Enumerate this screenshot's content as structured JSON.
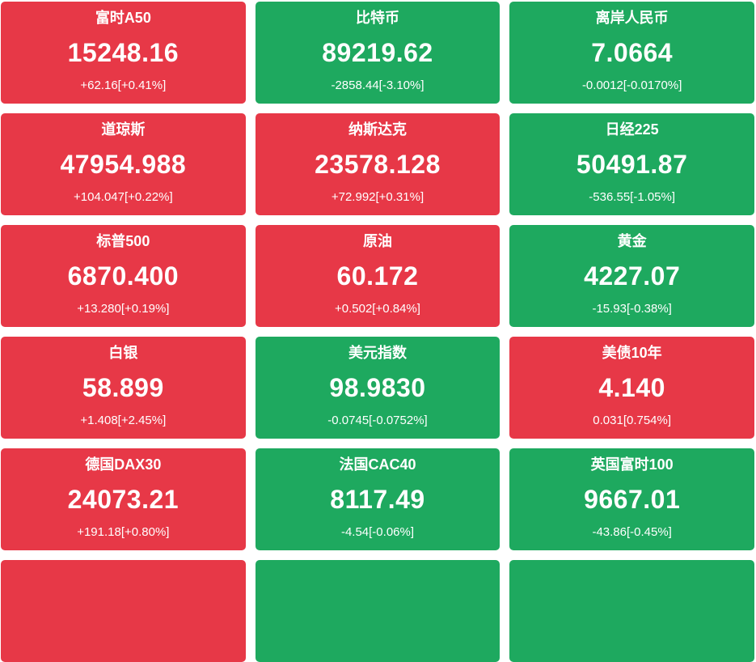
{
  "grid": {
    "colors": {
      "up": "#e73847",
      "down": "#1ea95f"
    },
    "tiles": [
      {
        "name": "富时A50",
        "price": "15248.16",
        "change": "+62.16[+0.41%]",
        "direction": "up"
      },
      {
        "name": "比特币",
        "price": "89219.62",
        "change": "-2858.44[-3.10%]",
        "direction": "down"
      },
      {
        "name": "离岸人民币",
        "price": "7.0664",
        "change": "-0.0012[-0.0170%]",
        "direction": "down"
      },
      {
        "name": "道琼斯",
        "price": "47954.988",
        "change": "+104.047[+0.22%]",
        "direction": "up"
      },
      {
        "name": "纳斯达克",
        "price": "23578.128",
        "change": "+72.992[+0.31%]",
        "direction": "up"
      },
      {
        "name": "日经225",
        "price": "50491.87",
        "change": "-536.55[-1.05%]",
        "direction": "down"
      },
      {
        "name": "标普500",
        "price": "6870.400",
        "change": "+13.280[+0.19%]",
        "direction": "up"
      },
      {
        "name": "原油",
        "price": "60.172",
        "change": "+0.502[+0.84%]",
        "direction": "up"
      },
      {
        "name": "黄金",
        "price": "4227.07",
        "change": "-15.93[-0.38%]",
        "direction": "down"
      },
      {
        "name": "白银",
        "price": "58.899",
        "change": "+1.408[+2.45%]",
        "direction": "up"
      },
      {
        "name": "美元指数",
        "price": "98.9830",
        "change": "-0.0745[-0.0752%]",
        "direction": "down"
      },
      {
        "name": "美债10年",
        "price": "4.140",
        "change": "0.031[0.754%]",
        "direction": "up"
      },
      {
        "name": "德国DAX30",
        "price": "24073.21",
        "change": "+191.18[+0.80%]",
        "direction": "up"
      },
      {
        "name": "法国CAC40",
        "price": "8117.49",
        "change": "-4.54[-0.06%]",
        "direction": "down"
      },
      {
        "name": "英国富时100",
        "price": "9667.01",
        "change": "-43.86[-0.45%]",
        "direction": "down"
      }
    ],
    "next_row_partial": [
      {
        "direction": "up"
      },
      {
        "direction": "down"
      },
      {
        "direction": "down"
      }
    ]
  }
}
